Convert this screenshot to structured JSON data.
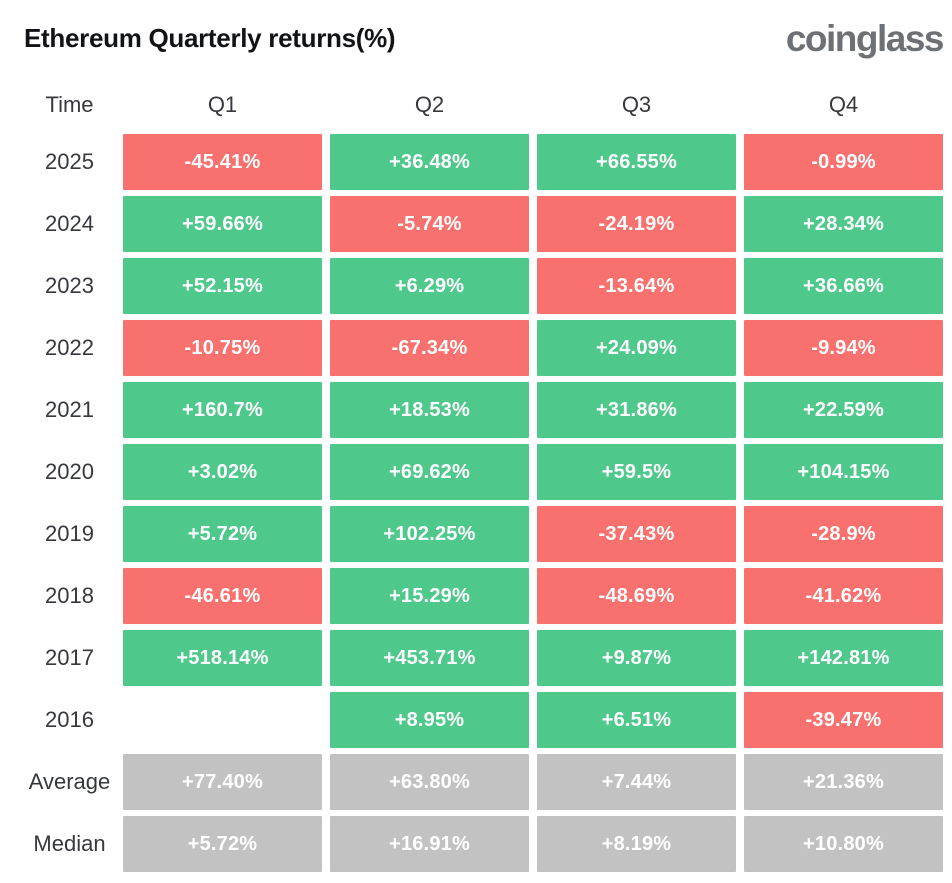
{
  "header": {
    "title": "Ethereum Quarterly returns(%)",
    "logo": "coinglass"
  },
  "colors": {
    "green": "#4ec98b",
    "red": "#f9716e",
    "gray": "#c2c2c2",
    "text_light": "#ffffff",
    "label": "#36383d",
    "title": "#121317",
    "logo": "#6d7176"
  },
  "table": {
    "headers": [
      "Time",
      "Q1",
      "Q2",
      "Q3",
      "Q4"
    ],
    "rows": [
      {
        "label": "2025",
        "cells": [
          {
            "value": "-45.41%",
            "color": "red"
          },
          {
            "value": "+36.48%",
            "color": "green"
          },
          {
            "value": "+66.55%",
            "color": "green"
          },
          {
            "value": "-0.99%",
            "color": "red"
          }
        ]
      },
      {
        "label": "2024",
        "cells": [
          {
            "value": "+59.66%",
            "color": "green"
          },
          {
            "value": "-5.74%",
            "color": "red"
          },
          {
            "value": "-24.19%",
            "color": "red"
          },
          {
            "value": "+28.34%",
            "color": "green"
          }
        ]
      },
      {
        "label": "2023",
        "cells": [
          {
            "value": "+52.15%",
            "color": "green"
          },
          {
            "value": "+6.29%",
            "color": "green"
          },
          {
            "value": "-13.64%",
            "color": "red"
          },
          {
            "value": "+36.66%",
            "color": "green"
          }
        ]
      },
      {
        "label": "2022",
        "cells": [
          {
            "value": "-10.75%",
            "color": "red"
          },
          {
            "value": "-67.34%",
            "color": "red"
          },
          {
            "value": "+24.09%",
            "color": "green"
          },
          {
            "value": "-9.94%",
            "color": "red"
          }
        ]
      },
      {
        "label": "2021",
        "cells": [
          {
            "value": "+160.7%",
            "color": "green"
          },
          {
            "value": "+18.53%",
            "color": "green"
          },
          {
            "value": "+31.86%",
            "color": "green"
          },
          {
            "value": "+22.59%",
            "color": "green"
          }
        ]
      },
      {
        "label": "2020",
        "cells": [
          {
            "value": "+3.02%",
            "color": "green"
          },
          {
            "value": "+69.62%",
            "color": "green"
          },
          {
            "value": "+59.5%",
            "color": "green"
          },
          {
            "value": "+104.15%",
            "color": "green"
          }
        ]
      },
      {
        "label": "2019",
        "cells": [
          {
            "value": "+5.72%",
            "color": "green"
          },
          {
            "value": "+102.25%",
            "color": "green"
          },
          {
            "value": "-37.43%",
            "color": "red"
          },
          {
            "value": "-28.9%",
            "color": "red"
          }
        ]
      },
      {
        "label": "2018",
        "cells": [
          {
            "value": "-46.61%",
            "color": "red"
          },
          {
            "value": "+15.29%",
            "color": "green"
          },
          {
            "value": "-48.69%",
            "color": "red"
          },
          {
            "value": "-41.62%",
            "color": "red"
          }
        ]
      },
      {
        "label": "2017",
        "cells": [
          {
            "value": "+518.14%",
            "color": "green"
          },
          {
            "value": "+453.71%",
            "color": "green"
          },
          {
            "value": "+9.87%",
            "color": "green"
          },
          {
            "value": "+142.81%",
            "color": "green"
          }
        ]
      },
      {
        "label": "2016",
        "cells": [
          {
            "value": "",
            "color": null
          },
          {
            "value": "+8.95%",
            "color": "green"
          },
          {
            "value": "+6.51%",
            "color": "green"
          },
          {
            "value": "-39.47%",
            "color": "red"
          }
        ]
      },
      {
        "label": "Average",
        "cells": [
          {
            "value": "+77.40%",
            "color": "gray"
          },
          {
            "value": "+63.80%",
            "color": "gray"
          },
          {
            "value": "+7.44%",
            "color": "gray"
          },
          {
            "value": "+21.36%",
            "color": "gray"
          }
        ]
      },
      {
        "label": "Median",
        "cells": [
          {
            "value": "+5.72%",
            "color": "gray"
          },
          {
            "value": "+16.91%",
            "color": "gray"
          },
          {
            "value": "+8.19%",
            "color": "gray"
          },
          {
            "value": "+10.80%",
            "color": "gray"
          }
        ]
      }
    ]
  },
  "chart_data": {
    "type": "heatmap",
    "title": "Ethereum Quarterly returns(%)",
    "columns": [
      "Q1",
      "Q2",
      "Q3",
      "Q4"
    ],
    "rows": [
      "2025",
      "2024",
      "2023",
      "2022",
      "2021",
      "2020",
      "2019",
      "2018",
      "2017",
      "2016",
      "Average",
      "Median"
    ],
    "values": [
      [
        -45.41,
        36.48,
        66.55,
        -0.99
      ],
      [
        59.66,
        -5.74,
        -24.19,
        28.34
      ],
      [
        52.15,
        6.29,
        -13.64,
        36.66
      ],
      [
        -10.75,
        -67.34,
        24.09,
        -9.94
      ],
      [
        160.7,
        18.53,
        31.86,
        22.59
      ],
      [
        3.02,
        69.62,
        59.5,
        104.15
      ],
      [
        5.72,
        102.25,
        -37.43,
        -28.9
      ],
      [
        -46.61,
        15.29,
        -48.69,
        -41.62
      ],
      [
        518.14,
        453.71,
        9.87,
        142.81
      ],
      [
        null,
        8.95,
        6.51,
        -39.47
      ],
      [
        77.4,
        63.8,
        7.44,
        21.36
      ],
      [
        5.72,
        16.91,
        8.19,
        10.8
      ]
    ],
    "legend": {
      "positive": "green",
      "negative": "red",
      "summary_rows": "gray",
      "missing": "blank"
    }
  }
}
